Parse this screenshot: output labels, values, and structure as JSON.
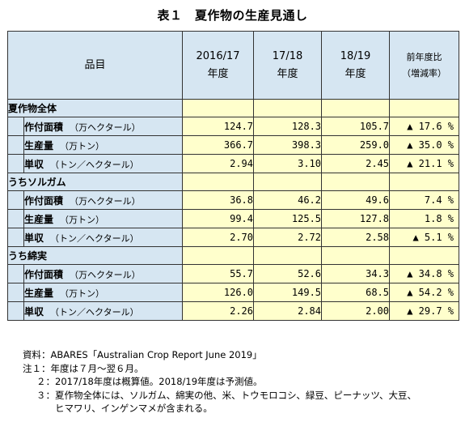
{
  "title": "表１　夏作物の生産見通し",
  "header": {
    "item": "品目",
    "col1_line1": "2016/17",
    "col1_line2": "年度",
    "col2_line1": "17/18",
    "col2_line2": "年度",
    "col3_line1": "18/19",
    "col3_line2": "年度",
    "col4_line1": "前年度比",
    "col4_line2": "（増減率）"
  },
  "groups": [
    {
      "name": "夏作物全体",
      "rows": [
        {
          "label": "作付面積",
          "unit": "（万ヘクタール）",
          "v1": "124.7",
          "v2": "128.3",
          "v3": "105.7",
          "change": "▲ 17.6 %"
        },
        {
          "label": "生産量",
          "unit": "（万トン）",
          "v1": "366.7",
          "v2": "398.3",
          "v3": "259.0",
          "change": "▲ 35.0 %"
        },
        {
          "label": "単収",
          "unit": "（トン／ヘクタール）",
          "v1": "2.94",
          "v2": "3.10",
          "v3": "2.45",
          "change": "▲ 21.1 %"
        }
      ]
    },
    {
      "name": "うちソルガム",
      "rows": [
        {
          "label": "作付面積",
          "unit": "（万ヘクタール）",
          "v1": "36.8",
          "v2": "46.2",
          "v3": "49.6",
          "change": "7.4 %"
        },
        {
          "label": "生産量",
          "unit": "（万トン）",
          "v1": "99.4",
          "v2": "125.5",
          "v3": "127.8",
          "change": "1.8 %"
        },
        {
          "label": "単収",
          "unit": "（トン／ヘクタール）",
          "v1": "2.70",
          "v2": "2.72",
          "v3": "2.58",
          "change": "▲ 5.1 %"
        }
      ]
    },
    {
      "name": "うち綿実",
      "rows": [
        {
          "label": "作付面積",
          "unit": "（万ヘクタール）",
          "v1": "55.7",
          "v2": "52.6",
          "v3": "34.3",
          "change": "▲ 34.8 %"
        },
        {
          "label": "生産量",
          "unit": "（万トン）",
          "v1": "126.0",
          "v2": "149.5",
          "v3": "68.5",
          "change": "▲ 54.2 %"
        },
        {
          "label": "単収",
          "unit": "（トン／ヘクタール）",
          "v1": "2.26",
          "v2": "2.84",
          "v3": "2.00",
          "change": "▲ 29.7 %"
        }
      ]
    }
  ],
  "notes": {
    "source_key": "資料：",
    "source": "ABARES「Australian Crop Report June 2019」",
    "note1_key": "注１：",
    "note1": "年度は７月～翌６月。",
    "note2_key": "２：",
    "note2": "2017/18年度は概算値。2018/19年度は予測値。",
    "note3_key": "３：",
    "note3_line1": "夏作物全体には、ソルガム、綿実の他、米、トウモロコシ、緑豆、ピーナッツ、大豆、",
    "note3_line2": "ヒマワリ、インゲンマメが含まれる。"
  }
}
